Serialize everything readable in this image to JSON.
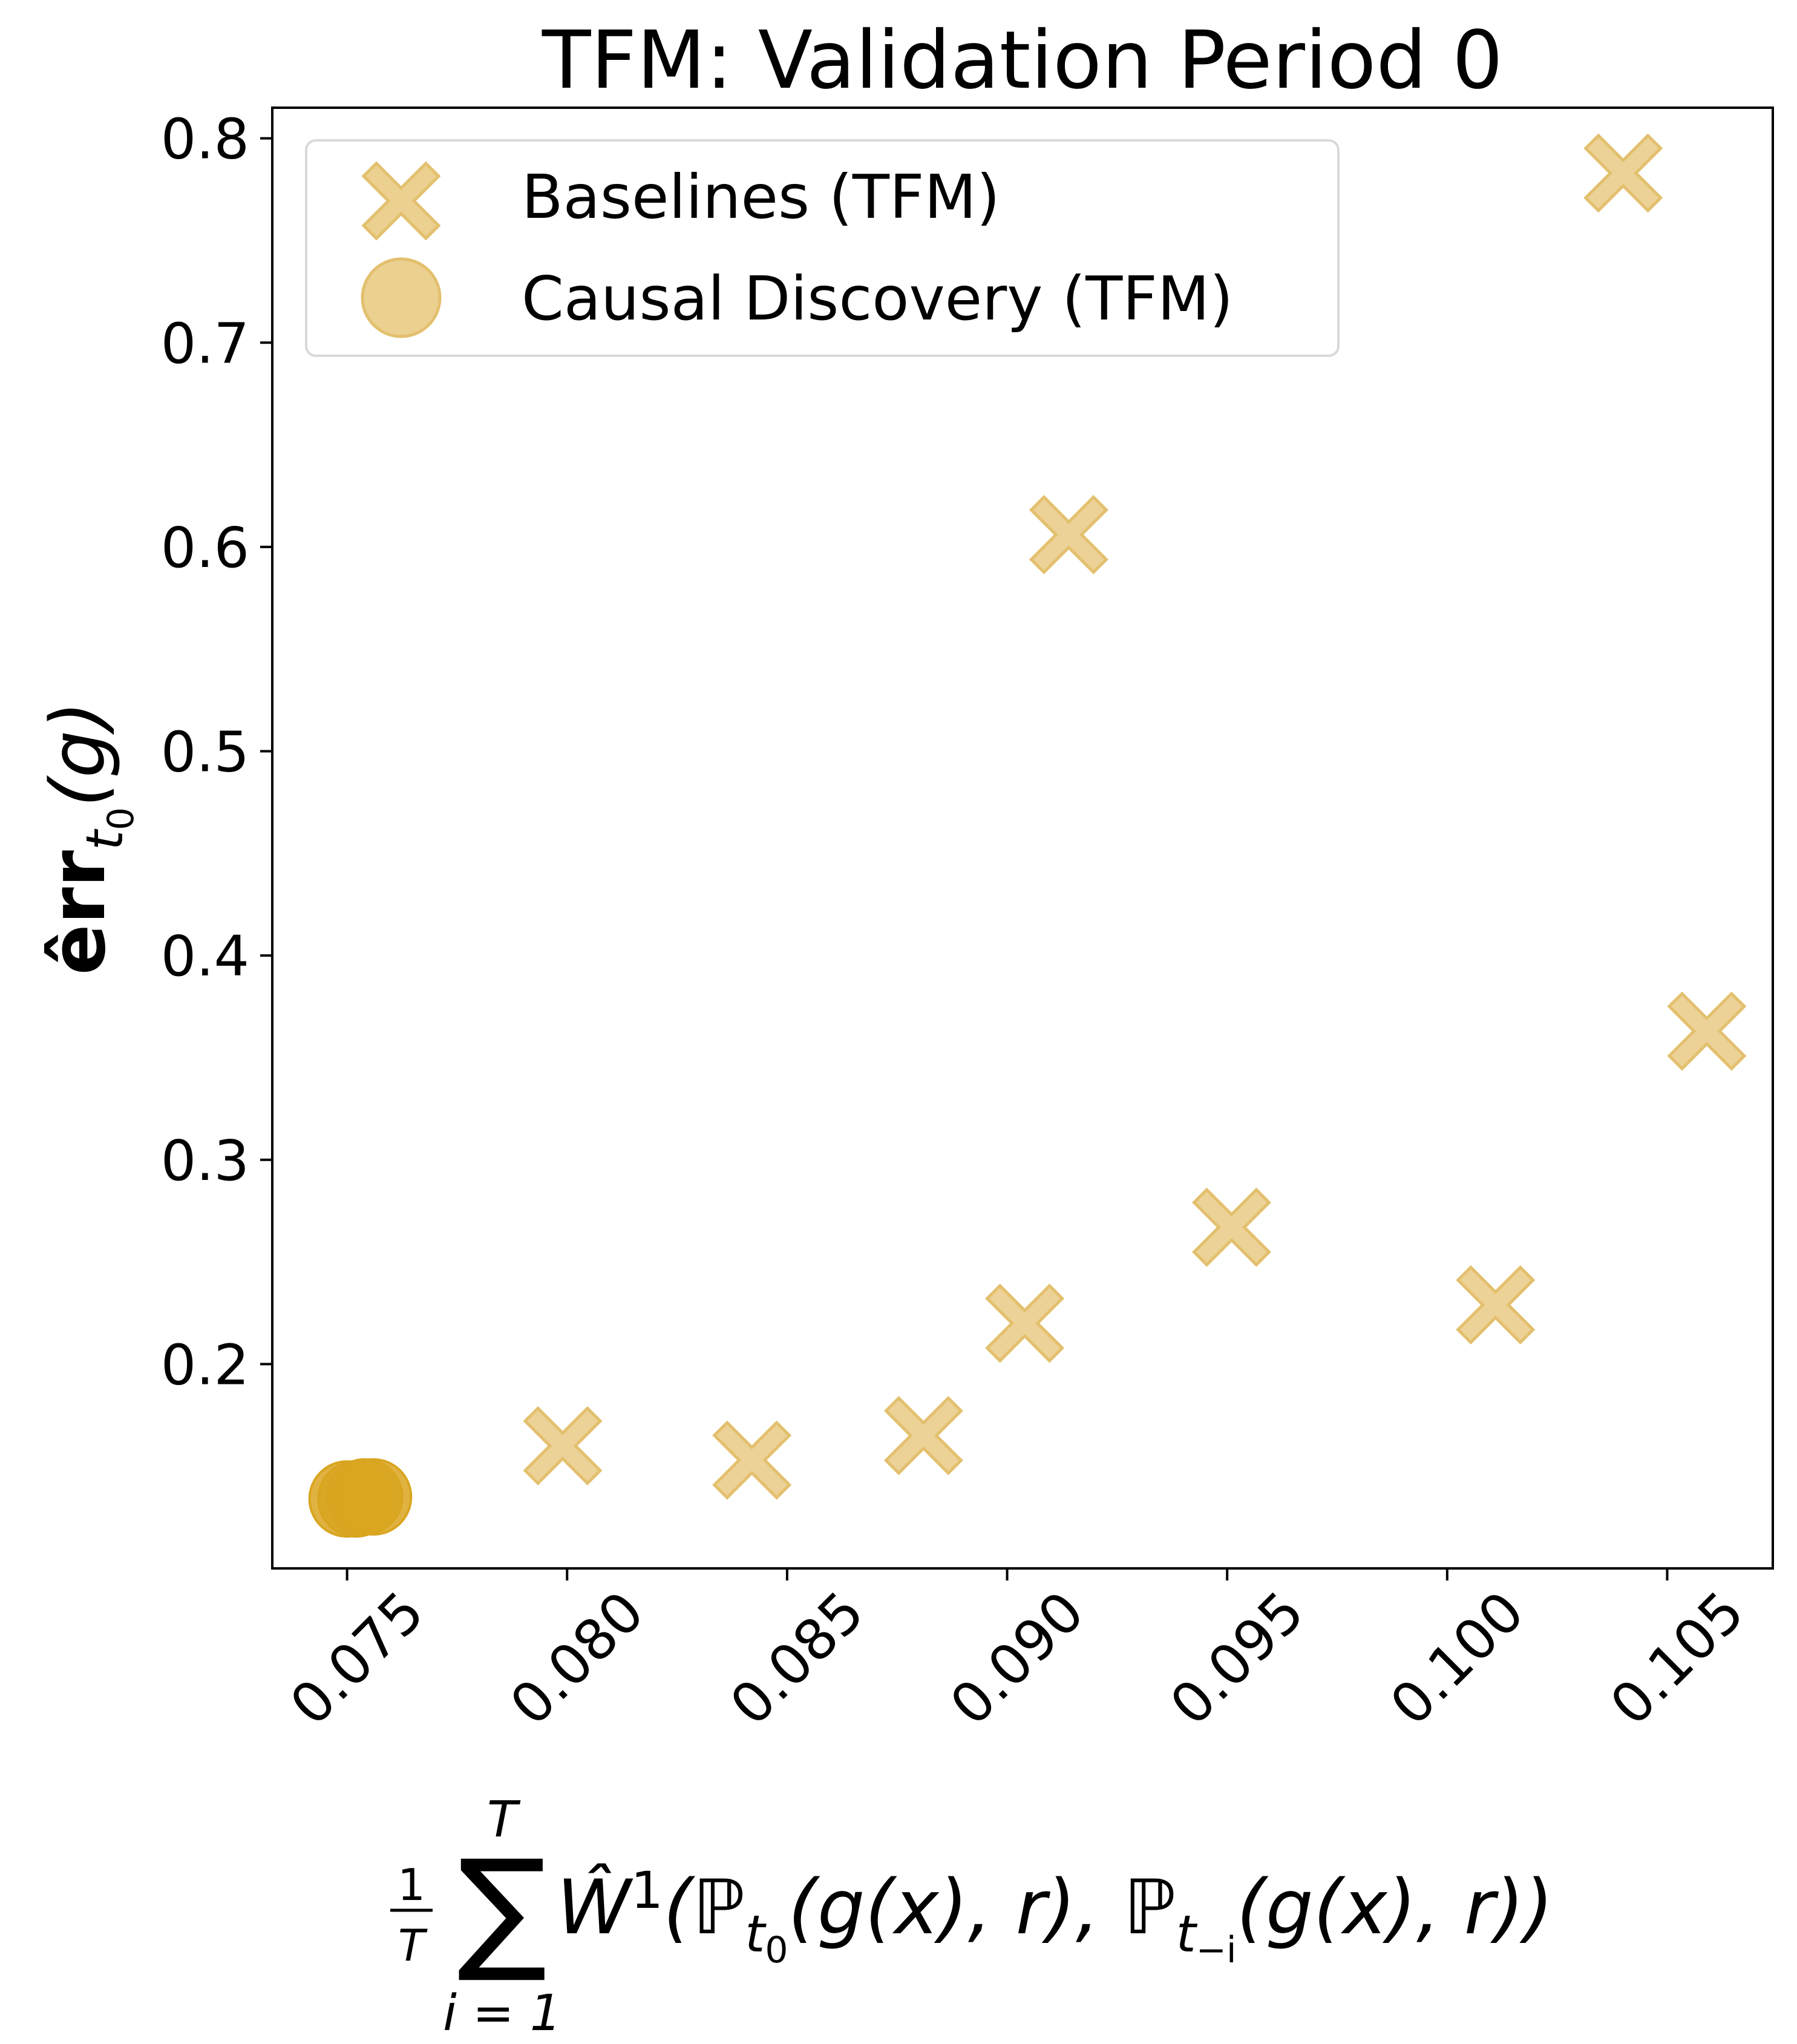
{
  "chart_data": {
    "type": "scatter",
    "title": "TFM: Validation Period 0",
    "xlabel": "1/T Σ_{i=1}^{T} Ŵ¹(ℙ_{t₀}(g(x), r), ℙ_{t₋ᵢ}(g(x), r))",
    "ylabel": "êrr_{t₀}(g)",
    "xlim": [
      0.0733,
      0.1074
    ],
    "ylim": [
      0.1,
      0.815
    ],
    "xticks": [
      "0.075",
      "0.080",
      "0.085",
      "0.090",
      "0.095",
      "0.100",
      "0.105"
    ],
    "yticks": [
      "0.2",
      "0.3",
      "0.4",
      "0.5",
      "0.6",
      "0.7",
      "0.8"
    ],
    "grid": false,
    "legend_position": "upper-left",
    "series": [
      {
        "name": "Baselines (TFM)",
        "marker": "X",
        "color": "#e8c77d",
        "points": [
          {
            "x": 0.0799,
            "y": 0.16
          },
          {
            "x": 0.0842,
            "y": 0.153
          },
          {
            "x": 0.0881,
            "y": 0.165
          },
          {
            "x": 0.0904,
            "y": 0.22
          },
          {
            "x": 0.0914,
            "y": 0.606
          },
          {
            "x": 0.0951,
            "y": 0.267
          },
          {
            "x": 0.1011,
            "y": 0.229
          },
          {
            "x": 0.104,
            "y": 0.783
          },
          {
            "x": 0.1059,
            "y": 0.363
          }
        ]
      },
      {
        "name": "Causal Discovery (TFM)",
        "marker": "o",
        "color": "#d9a520",
        "points": [
          {
            "x": 0.075,
            "y": 0.134
          },
          {
            "x": 0.0752,
            "y": 0.134
          },
          {
            "x": 0.0754,
            "y": 0.135
          },
          {
            "x": 0.0756,
            "y": 0.135
          }
        ]
      }
    ]
  }
}
